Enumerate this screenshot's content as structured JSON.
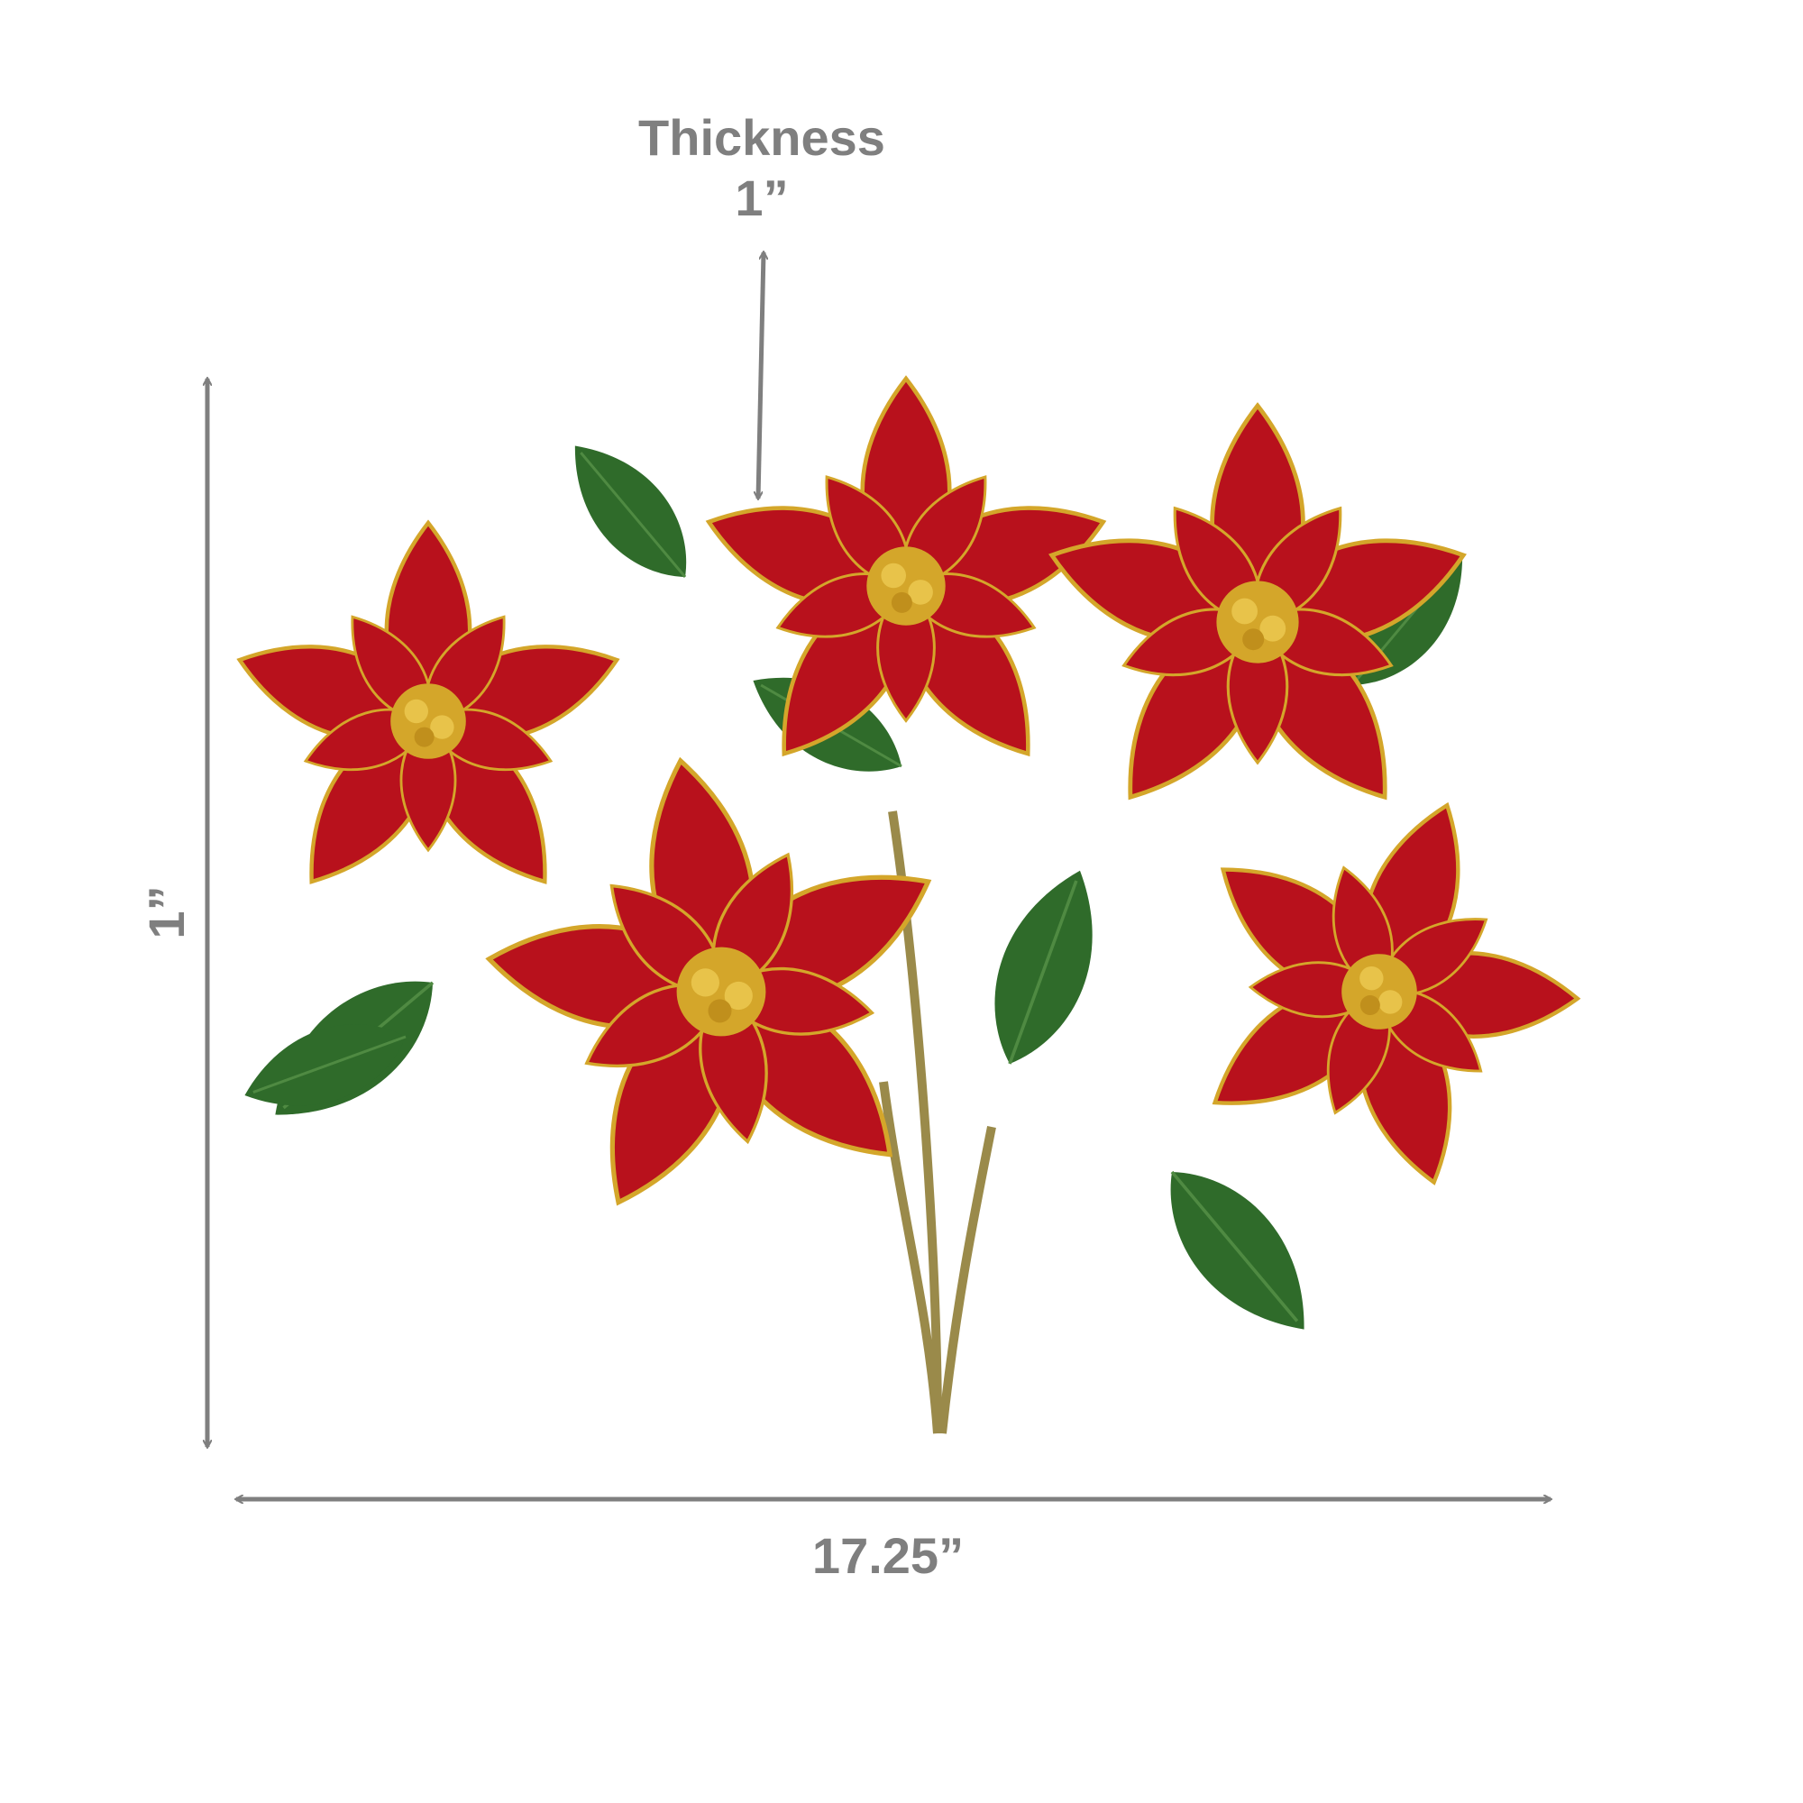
{
  "dimensions": {
    "thickness_label": "Thickness",
    "thickness_value": "1”",
    "height_value": "1”",
    "width_value": "17.25”"
  },
  "colors": {
    "annotation": "#7f7f7f",
    "petal": "#b8111c",
    "leaf": "#2f6b2a",
    "gold": "#d4a62a"
  }
}
